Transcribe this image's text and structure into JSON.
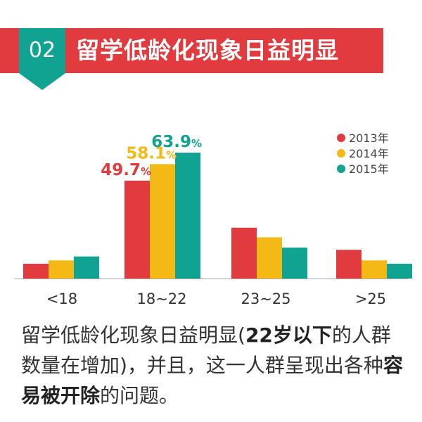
{
  "header": {
    "badge_number": "02",
    "title": "留学低龄化现象日益明显",
    "banner_color": "#e23b3f",
    "badge_color": "#10a392"
  },
  "chart_data": {
    "type": "bar",
    "categories": [
      "<18",
      "18~22",
      "23~25",
      ">25"
    ],
    "series": [
      {
        "name": "2013年",
        "color": "#e23b3f",
        "values": [
          7.5,
          49.7,
          25.8,
          14.6
        ]
      },
      {
        "name": "2014年",
        "color": "#f5b915",
        "values": [
          9.2,
          58.1,
          20.9,
          9.2
        ]
      },
      {
        "name": "2015年",
        "color": "#10a392",
        "values": [
          11.2,
          63.9,
          15.7,
          7.5
        ]
      }
    ],
    "data_labels": [
      {
        "series": 0,
        "category": 1,
        "text": "49.7",
        "unit": "%"
      },
      {
        "series": 1,
        "category": 1,
        "text": "58.1",
        "unit": "%"
      },
      {
        "series": 2,
        "category": 1,
        "text": "63.9",
        "unit": "%"
      }
    ],
    "ylim": [
      0,
      70
    ],
    "grid": false,
    "legend_position": "top-right"
  },
  "caption": {
    "part1": "留学低龄化现象日益明显(",
    "bold1": "22岁以下",
    "part2": "的人群数量在增加)，并且，这一人群呈现出各种",
    "bold2": "容易被开除",
    "part3": "的问题。"
  }
}
